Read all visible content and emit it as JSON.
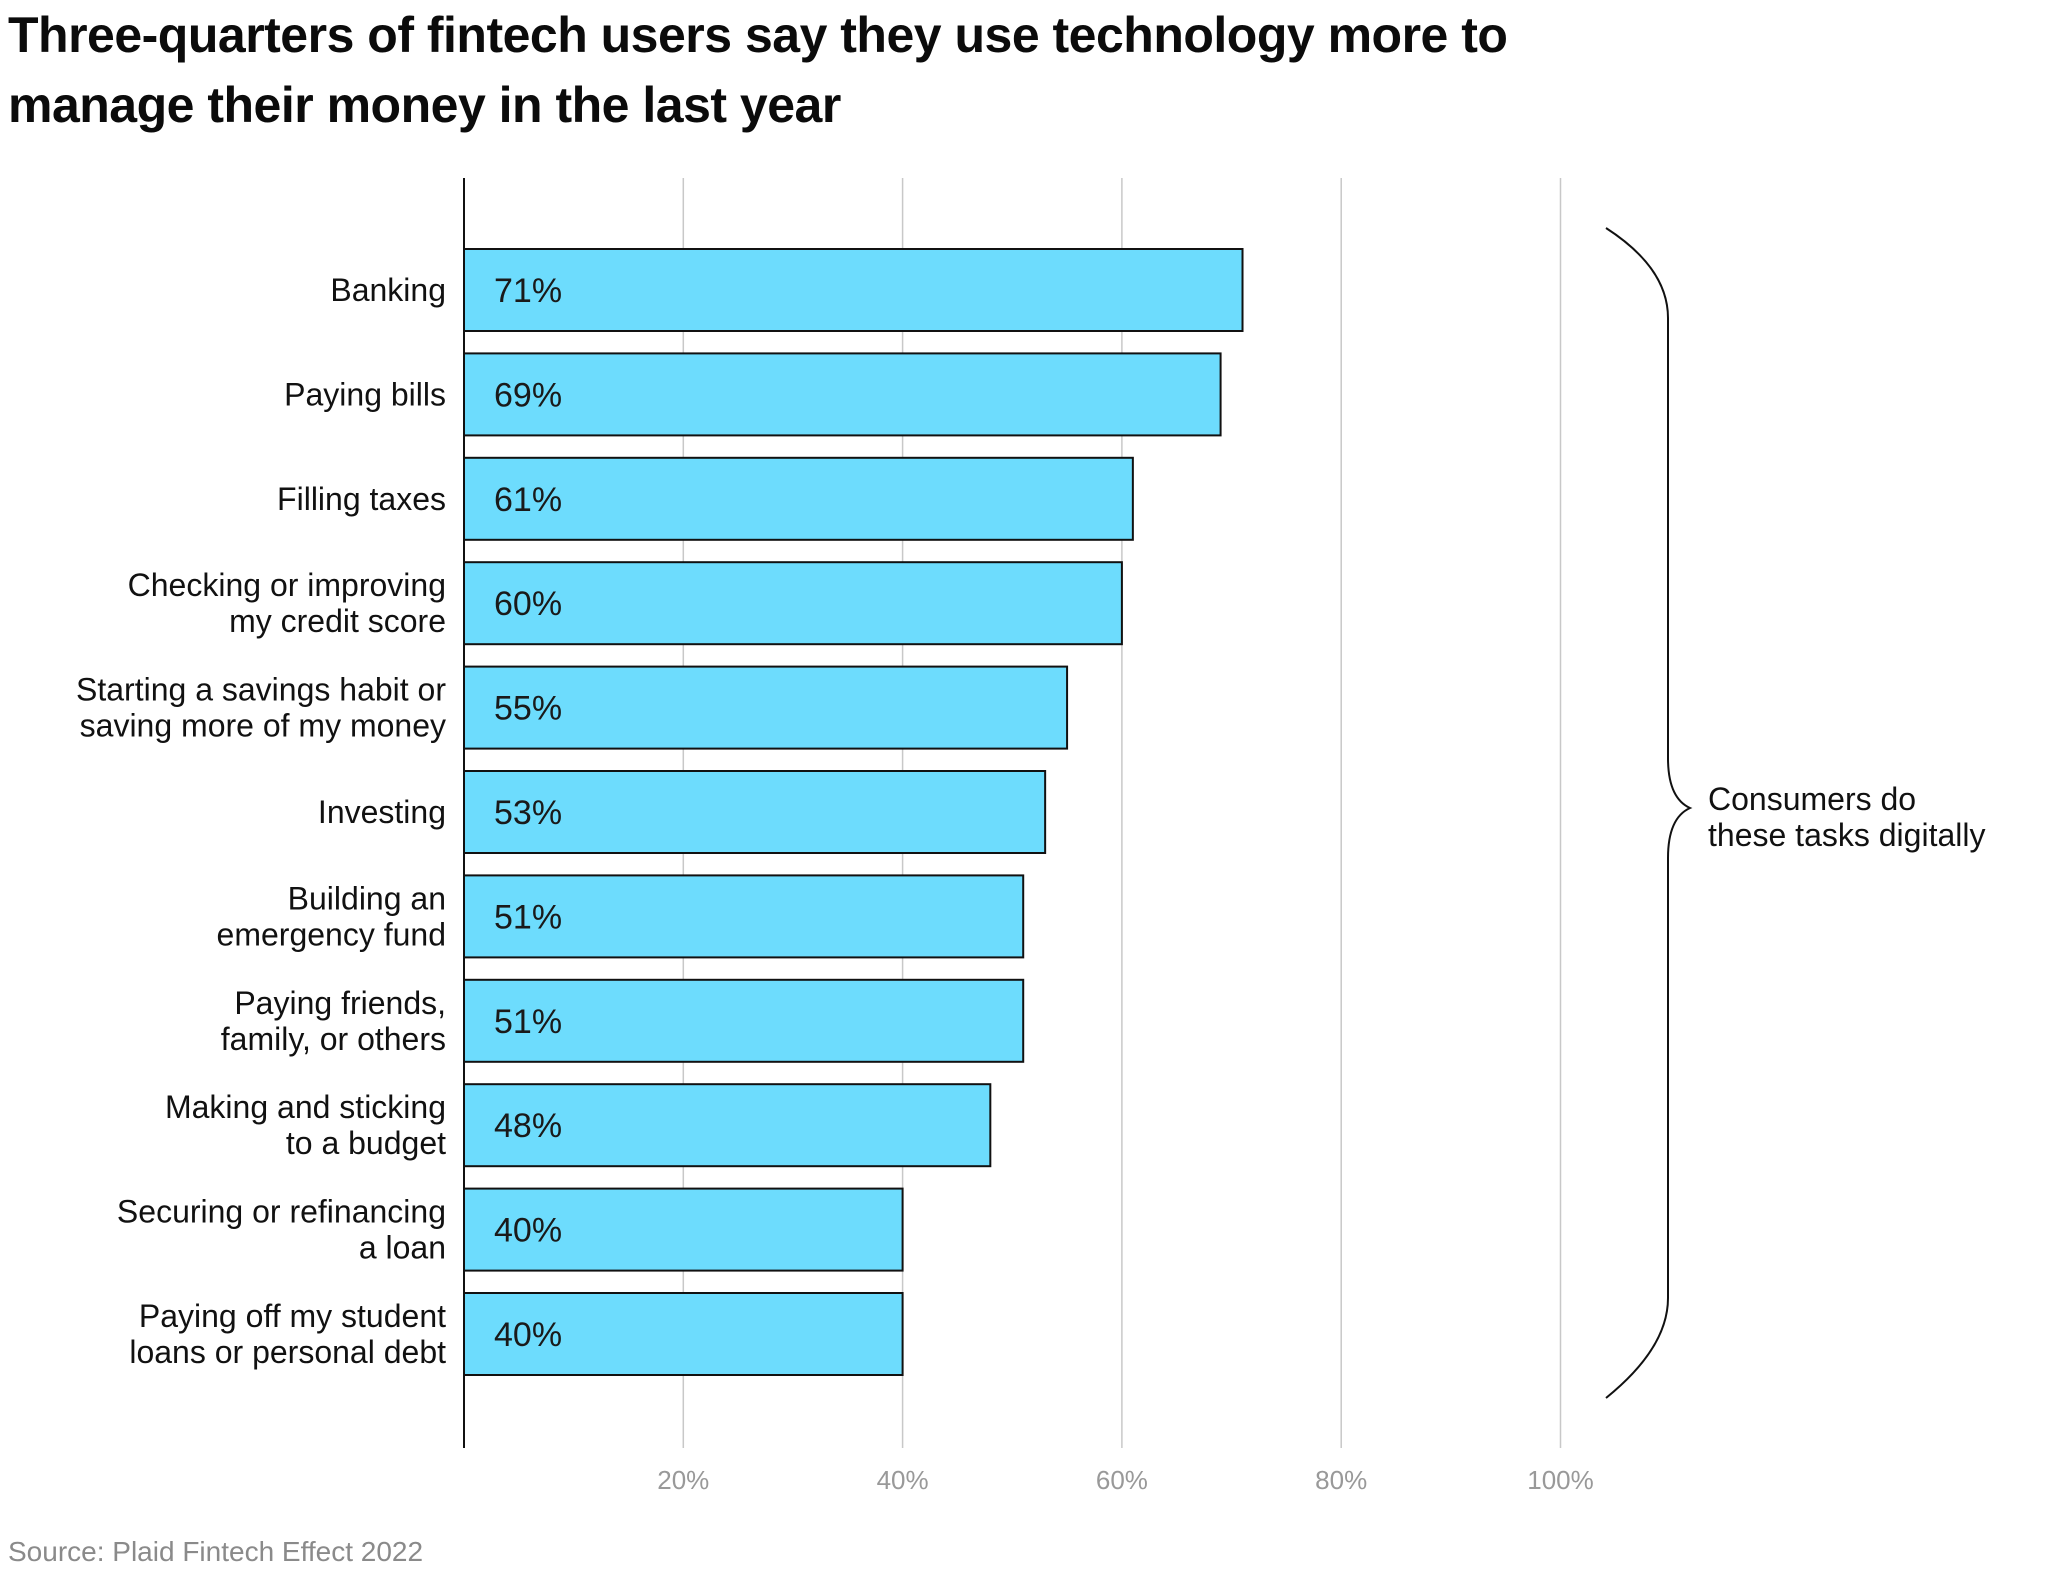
{
  "chart_data": {
    "type": "bar",
    "orientation": "horizontal",
    "title": "Three-quarters of fintech users say they use technology more to manage their money in the last year",
    "categories": [
      [
        "Banking"
      ],
      [
        "Paying bills"
      ],
      [
        "Filling taxes"
      ],
      [
        "Checking or improving",
        "my credit score"
      ],
      [
        "Starting a savings habit or",
        "saving more of my money"
      ],
      [
        "Investing"
      ],
      [
        "Building an",
        "emergency fund"
      ],
      [
        "Paying friends,",
        "family, or others"
      ],
      [
        "Making and sticking",
        "to a budget"
      ],
      [
        "Securing or refinancing",
        "a loan"
      ],
      [
        "Paying off my student",
        "loans or personal debt"
      ]
    ],
    "values": [
      71,
      69,
      61,
      60,
      55,
      53,
      51,
      51,
      48,
      40,
      40
    ],
    "value_labels": [
      "71%",
      "69%",
      "61%",
      "60%",
      "55%",
      "53%",
      "51%",
      "51%",
      "48%",
      "40%",
      "40%"
    ],
    "xlim": [
      0,
      100
    ],
    "x_ticks": [
      20,
      40,
      60,
      80,
      100
    ],
    "x_tick_labels": [
      "20%",
      "40%",
      "60%",
      "80%",
      "100%"
    ],
    "grid": "vertical",
    "bar_color": "#6ddcfd",
    "bar_edge_color": "#111111",
    "annotation": [
      "Consumers do",
      "these tasks digitally"
    ],
    "source": "Source: Plaid Fintech Effect 2022"
  }
}
